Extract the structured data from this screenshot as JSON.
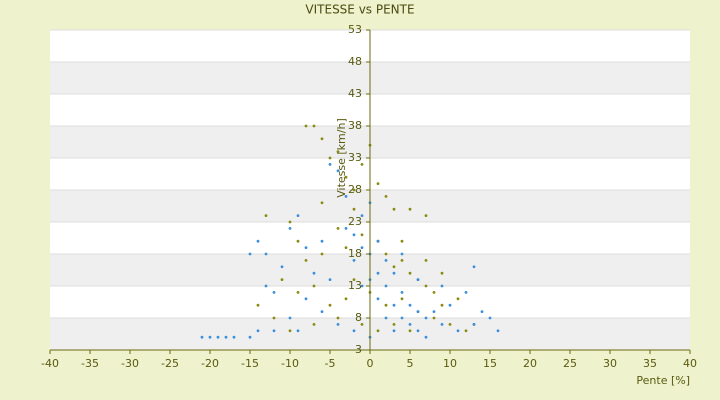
{
  "chart_data": {
    "type": "scatter",
    "title": "VITESSE vs PENTE",
    "x_label": "Pente [%]",
    "y_label": "Vitesse [km/h]",
    "xlim": [
      -40,
      40
    ],
    "xticks": [
      -40,
      -35,
      -30,
      -25,
      -20,
      -15,
      -10,
      -5,
      0,
      5,
      10,
      15,
      20,
      25,
      30,
      35,
      40
    ],
    "ylim": [
      3,
      53
    ],
    "yticks": [
      3,
      8,
      13,
      18,
      23,
      28,
      33,
      38,
      43,
      48,
      53
    ],
    "grid": true,
    "series": [
      {
        "color": "#8a8a10",
        "x": [
          -8,
          -7,
          -6,
          -5,
          -4,
          -3,
          -2,
          -1,
          0,
          1,
          2,
          3,
          5,
          7,
          -13,
          -10,
          -9,
          -8,
          -6,
          -4,
          -3,
          -1,
          1,
          2,
          3,
          4,
          5,
          6,
          7,
          8,
          -11,
          -9,
          -7,
          -5,
          -3,
          -2,
          0,
          2,
          4,
          6,
          8,
          10,
          12,
          -12,
          -10,
          -7,
          -4,
          -1,
          1,
          3,
          5,
          9,
          11,
          -2,
          4,
          -6,
          7,
          9,
          13,
          -14
        ],
        "values": [
          38,
          38,
          36,
          33,
          34,
          30,
          28,
          32,
          35,
          29,
          27,
          25,
          25,
          24,
          24,
          23,
          20,
          17,
          18,
          22,
          19,
          21,
          20,
          18,
          16,
          17,
          15,
          14,
          13,
          12,
          14,
          12,
          13,
          10,
          11,
          14,
          12,
          10,
          11,
          9,
          8,
          7,
          6,
          8,
          6,
          7,
          8,
          7,
          6,
          7,
          6,
          10,
          11,
          25,
          20,
          26,
          17,
          15,
          7,
          10
        ]
      },
      {
        "color": "#3a8fdc",
        "x": [
          -21,
          -20,
          -19,
          -18,
          -17,
          -15,
          -14,
          -14,
          -15,
          -13,
          -12,
          -13,
          -11,
          -10,
          -9,
          -8,
          -7,
          -6,
          -5,
          -4,
          -3,
          -3,
          -2,
          -2,
          -1,
          -1,
          0,
          0,
          0,
          1,
          1,
          1,
          2,
          2,
          2,
          3,
          3,
          3,
          4,
          4,
          5,
          5,
          6,
          6,
          7,
          7,
          8,
          9,
          10,
          11,
          12,
          13,
          14,
          15,
          16,
          13,
          -10,
          -8,
          -6,
          -4,
          -2,
          0,
          -12,
          -9,
          9,
          6,
          4,
          -1,
          -5
        ],
        "values": [
          5,
          5,
          5,
          5,
          5,
          5,
          6,
          20,
          18,
          18,
          12,
          13,
          16,
          22,
          24,
          19,
          15,
          20,
          32,
          31,
          27,
          22,
          21,
          17,
          24,
          19,
          26,
          18,
          14,
          20,
          15,
          11,
          17,
          13,
          8,
          15,
          10,
          6,
          12,
          8,
          10,
          7,
          9,
          6,
          8,
          5,
          9,
          7,
          10,
          6,
          12,
          7,
          9,
          8,
          6,
          16,
          8,
          11,
          9,
          7,
          6,
          5,
          6,
          6,
          13,
          14,
          18,
          13,
          14
        ]
      }
    ]
  }
}
